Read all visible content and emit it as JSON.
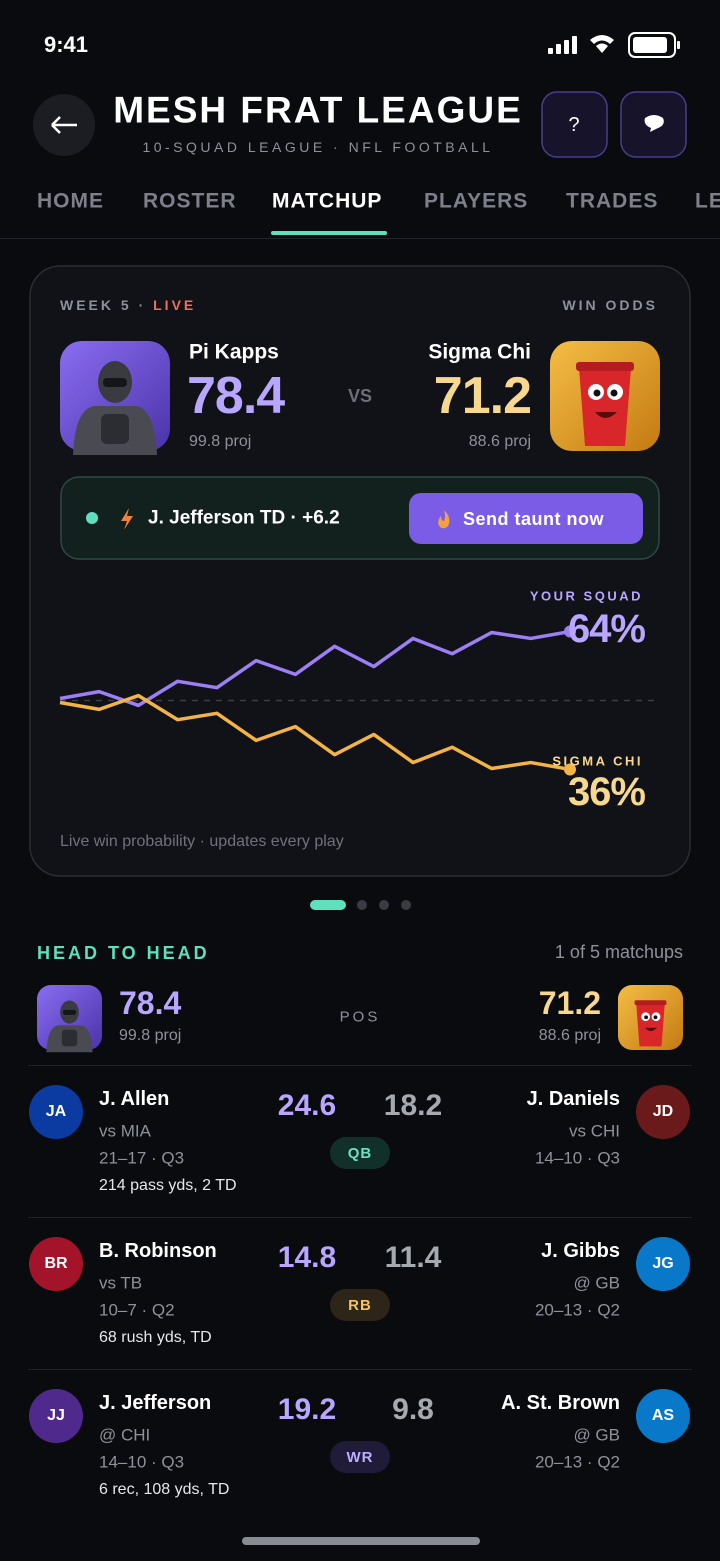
{
  "status_bar": {
    "time": "9:41"
  },
  "header": {
    "title": "MESH FRAT LEAGUE",
    "subtitle": "10-SQUAD LEAGUE · NFL FOOTBALL",
    "help": "?"
  },
  "tabs": {
    "items": [
      "HOME",
      "ROSTER",
      "MATCHUP",
      "PLAYERS",
      "TRADES",
      "LE"
    ],
    "active": 2
  },
  "matchup": {
    "week": "WEEK 5 ·",
    "status": "LIVE",
    "odds_label": "WIN ODDS",
    "vs": "VS",
    "home": {
      "name": "Pi Kapps",
      "score": 78.4,
      "proj": "99.8 proj"
    },
    "away": {
      "name": "Sigma Chi",
      "score": 71.2,
      "proj": "88.6 proj"
    },
    "event": "J. Jefferson TD · +6.2",
    "action": "Send taunt now"
  },
  "win_chart": {
    "type": "line",
    "ylim": [
      30,
      70
    ],
    "series": [
      {
        "name": "YOUR SQUAD",
        "color": "#9d7ff5",
        "label_color": "#b9a6ff",
        "end_label": "64%",
        "values": [
          50.4,
          51.8,
          49,
          53.9,
          52.6,
          58.1,
          55.3,
          61,
          56.9,
          62.6,
          59.5,
          63.8,
          62.6,
          64
        ]
      },
      {
        "name": "SIGMA CHI",
        "color": "#f2b447",
        "label_color": "#f8d88e",
        "end_label": "36%",
        "values": [
          49.6,
          48.2,
          51,
          46.1,
          47.4,
          41.9,
          44.7,
          39,
          43.1,
          37.4,
          40.5,
          36.2,
          37.4,
          36
        ]
      }
    ],
    "caption": "Live win probability · updates every play"
  },
  "head_to_head": {
    "title": "HEAD TO HEAD",
    "count": "1 of 5 matchups",
    "pos_label": "POS",
    "home": {
      "score": 78.4,
      "proj": "99.8 proj"
    },
    "away": {
      "score": 71.2,
      "proj": "88.6 proj"
    },
    "rows": [
      {
        "pos": "QB",
        "pos_bg": "#12302a",
        "pos_color": "#6fe0bd",
        "home": {
          "initials": "JA",
          "color": "#0b3aa0",
          "name": "J. Allen",
          "opp": "vs MIA",
          "game": "21–17 · Q3",
          "stats": "214 pass yds, 2 TD",
          "points": 24.6
        },
        "away": {
          "initials": "JD",
          "color": "#6b1a1c",
          "name": "J. Daniels",
          "opp": "vs CHI",
          "game": "14–10 · Q3",
          "points": 18.2
        }
      },
      {
        "pos": "RB",
        "pos_bg": "#2d2517",
        "pos_color": "#f2c463",
        "home": {
          "initials": "BR",
          "color": "#a3142a",
          "name": "B. Robinson",
          "opp": "vs TB",
          "game": "10–7 · Q2",
          "stats": "68 rush yds, TD",
          "points": 14.8
        },
        "away": {
          "initials": "JG",
          "color": "#0a78c8",
          "name": "J. Gibbs",
          "opp": "@ GB",
          "game": "20–13 · Q2",
          "points": 11.4
        }
      },
      {
        "pos": "WR",
        "pos_bg": "#1f1b38",
        "pos_color": "#bcaeff",
        "home": {
          "initials": "JJ",
          "color": "#4f2a8c",
          "name": "J. Jefferson",
          "opp": "@ CHI",
          "game": "14–10 · Q3",
          "stats": "6 rec, 108 yds, TD",
          "points": 19.2
        },
        "away": {
          "initials": "AS",
          "color": "#0a78c8",
          "name": "A. St. Brown",
          "opp": "@ GB",
          "game": "20–13 · Q2",
          "points": 9.8
        }
      }
    ]
  }
}
